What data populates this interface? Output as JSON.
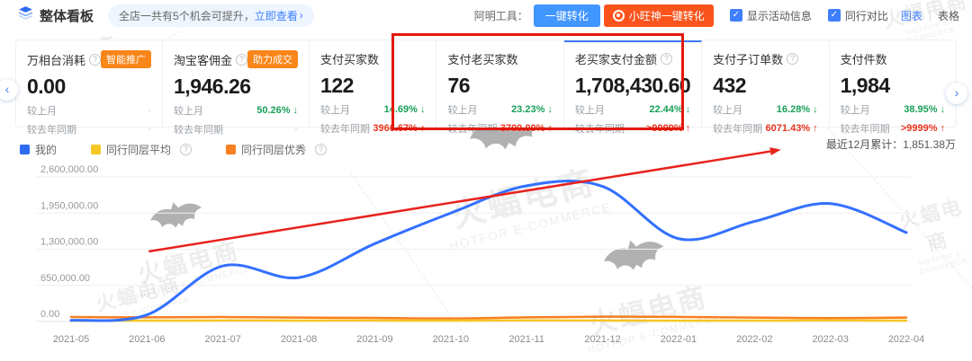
{
  "header": {
    "title": "整体看板",
    "notice_text": "全店一共有5个机会可提升，",
    "notice_link": "立即查看",
    "notice_chevron": "›",
    "tools_label": "阿明工具：",
    "btn_convert": "一键转化",
    "btn_xiaowangshen": "小旺神一键转化",
    "chk_activity": "显示活动信息",
    "chk_peer": "同行对比",
    "check_glyph": "✓",
    "view_chart": "图表",
    "view_divider": "|",
    "view_table": "表格"
  },
  "carousel": {
    "prev": "‹",
    "next": "›"
  },
  "cards": [
    {
      "title": "万相台消耗",
      "badge": "智能推广",
      "value": "0.00",
      "rows": [
        {
          "label": "较上月",
          "value": "-",
          "arrow": ""
        },
        {
          "label": "较去年同期",
          "value": "-",
          "arrow": ""
        }
      ]
    },
    {
      "title": "淘宝客佣金",
      "badge": "助力成交",
      "value": "1,946.26",
      "rows": [
        {
          "label": "较上月",
          "value": "50.26%",
          "arrow": "↓"
        },
        {
          "label": "较去年同期",
          "value": "-",
          "arrow": ""
        }
      ]
    },
    {
      "title": "支付买家数",
      "value": "122",
      "rows": [
        {
          "label": "较上月",
          "value": "14.69%",
          "arrow": "↓"
        },
        {
          "label": "较去年同期",
          "value": "3966.67%",
          "arrow": "↑"
        }
      ]
    },
    {
      "title": "支付老买家数",
      "value": "76",
      "rows": [
        {
          "label": "较上月",
          "value": "23.23%",
          "arrow": "↓"
        },
        {
          "label": "较去年同期",
          "value": "3700.00%",
          "arrow": "↑"
        }
      ]
    },
    {
      "title": "老买家支付金额",
      "value": "1,708,430.60",
      "rows": [
        {
          "label": "较上月",
          "value": "22.44%",
          "arrow": "↓"
        },
        {
          "label": "较去年同期",
          "value": ">9999%",
          "arrow": "↑"
        }
      ]
    },
    {
      "title": "支付子订单数",
      "value": "432",
      "rows": [
        {
          "label": "较上月",
          "value": "16.28%",
          "arrow": "↓"
        },
        {
          "label": "较去年同期",
          "value": "6071.43%",
          "arrow": "↑"
        }
      ]
    },
    {
      "title": "支付件数",
      "value": "1,984",
      "rows": [
        {
          "label": "较上月",
          "value": "38.95%",
          "arrow": "↓"
        },
        {
          "label": "较去年同期",
          "value": ">9999%",
          "arrow": "↑"
        }
      ]
    }
  ],
  "legend": [
    {
      "label": "我的",
      "color": "#2e6bf2",
      "info": false
    },
    {
      "label": "同行同层平均",
      "color": "#f5c723",
      "info": true
    },
    {
      "label": "同行同层优秀",
      "color": "#f87f1f",
      "info": true
    }
  ],
  "cumulative_label": "最近12月累计：",
  "cumulative_value": "1,851.38万",
  "watermark": {
    "text": "火蝠电商",
    "subtext": "HOTFOR E-COMMERCE"
  },
  "chart_data": {
    "type": "line",
    "x": [
      "2021-05",
      "2021-06",
      "2021-07",
      "2021-08",
      "2021-09",
      "2021-10",
      "2021-11",
      "2021-12",
      "2022-01",
      "2022-02",
      "2022-03",
      "2022-04"
    ],
    "series": [
      {
        "name": "我的",
        "color": "#3370ff",
        "values": [
          20000,
          120000,
          1000000,
          790000,
          1400000,
          1950000,
          2440000,
          2430000,
          1490000,
          1800000,
          2120000,
          1600000
        ]
      },
      {
        "name": "同行同层平均",
        "color": "#f5c723",
        "values": [
          15000,
          16000,
          18000,
          17000,
          18000,
          16000,
          20000,
          18000,
          15000,
          16000,
          18000,
          17000
        ]
      },
      {
        "name": "同行同层优秀",
        "color": "#f87f1f",
        "values": [
          80000,
          74000,
          80000,
          70000,
          64000,
          54000,
          74000,
          86000,
          82000,
          70000,
          60000,
          70000
        ]
      }
    ],
    "ylim": [
      0,
      2600000
    ],
    "yticks": [
      "2,600,000.00",
      "1,950,000.00",
      "1,300,000.00",
      "650,000.00",
      "0.00"
    ],
    "grid": true,
    "legend_position": "top-left",
    "annotations": {
      "trend_arrow": {
        "color": "#e8221c",
        "x1_frac": 0.093,
        "y1_value": 1260000,
        "x2_frac": 0.85,
        "y2_value": 3090000
      }
    }
  }
}
